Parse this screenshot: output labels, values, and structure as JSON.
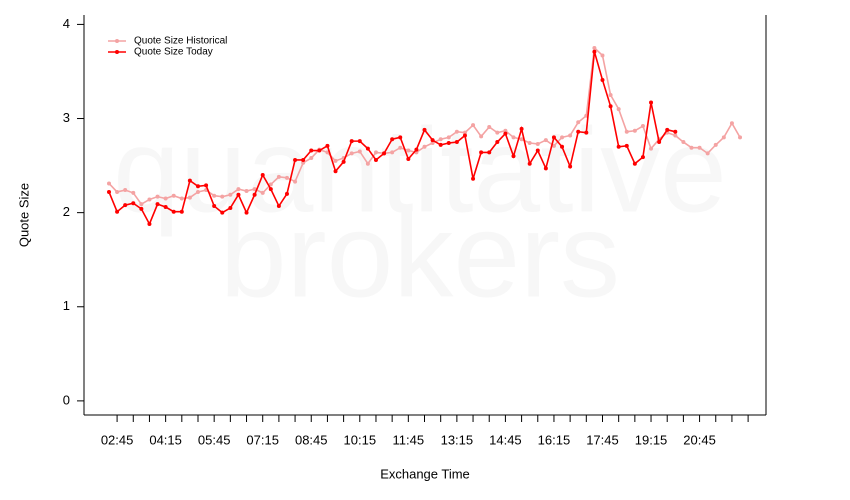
{
  "chart_data": {
    "type": "line",
    "watermark": [
      "quantitative",
      "brokers"
    ],
    "ylabel": "Quote Size",
    "xlabel": "Exchange Time",
    "x": [
      "02:30",
      "02:45",
      "03:00",
      "03:15",
      "03:30",
      "03:45",
      "04:00",
      "04:15",
      "04:30",
      "04:45",
      "05:00",
      "05:15",
      "05:30",
      "05:45",
      "06:00",
      "06:15",
      "06:30",
      "06:45",
      "07:00",
      "07:15",
      "07:30",
      "07:45",
      "08:00",
      "08:15",
      "08:30",
      "08:45",
      "09:00",
      "09:15",
      "09:30",
      "09:45",
      "10:00",
      "10:15",
      "10:30",
      "10:45",
      "11:00",
      "11:15",
      "11:30",
      "11:45",
      "12:00",
      "12:15",
      "12:30",
      "12:45",
      "13:00",
      "13:15",
      "13:30",
      "13:45",
      "14:00",
      "14:15",
      "14:30",
      "14:45",
      "15:00",
      "15:15",
      "15:30",
      "15:45",
      "16:00",
      "16:15",
      "16:30",
      "16:45",
      "17:00",
      "17:15",
      "17:30",
      "17:45",
      "18:00",
      "18:15",
      "18:30",
      "18:45",
      "19:00",
      "19:15",
      "19:30",
      "19:45",
      "20:00",
      "20:15",
      "20:30",
      "20:45",
      "21:00",
      "21:15",
      "21:30",
      "21:45",
      "22:00"
    ],
    "xticks": [
      "02:45",
      "04:15",
      "05:45",
      "07:15",
      "08:45",
      "10:15",
      "11:45",
      "13:15",
      "14:45",
      "16:15",
      "17:45",
      "19:15",
      "20:45"
    ],
    "xminorticks": [
      "03:15",
      "03:45",
      "04:45",
      "05:15",
      "06:15",
      "06:45",
      "07:45",
      "08:15",
      "09:15",
      "09:45",
      "10:45",
      "11:15",
      "12:15",
      "12:45",
      "13:45",
      "14:15",
      "15:15",
      "15:45",
      "16:45",
      "17:15",
      "18:15",
      "18:45",
      "19:45",
      "20:15",
      "21:15",
      "21:45",
      "22:15"
    ],
    "ylim": [
      -0.15,
      4.1
    ],
    "yticks": [
      0,
      1,
      2,
      3,
      4
    ],
    "legend": "top-left",
    "series": [
      {
        "name": "Quote Size Historical",
        "color": "#f4a3a3",
        "values": [
          2.31,
          2.22,
          2.24,
          2.21,
          2.09,
          2.14,
          2.17,
          2.15,
          2.18,
          2.15,
          2.16,
          2.22,
          2.24,
          2.18,
          2.17,
          2.19,
          2.25,
          2.23,
          2.25,
          2.21,
          2.3,
          2.38,
          2.37,
          2.33,
          2.53,
          2.58,
          2.67,
          2.64,
          2.55,
          2.58,
          2.63,
          2.65,
          2.52,
          2.64,
          2.63,
          2.64,
          2.69,
          2.66,
          2.64,
          2.7,
          2.74,
          2.78,
          2.8,
          2.86,
          2.85,
          2.93,
          2.81,
          2.91,
          2.85,
          2.87,
          2.8,
          2.78,
          2.74,
          2.73,
          2.77,
          2.71,
          2.8,
          2.82,
          2.96,
          3.03,
          3.75,
          3.67,
          3.25,
          3.1,
          2.86,
          2.87,
          2.92,
          2.68,
          2.78,
          2.85,
          2.82,
          2.75,
          2.69,
          2.69,
          2.63,
          2.72,
          2.8,
          2.95,
          2.8
        ]
      },
      {
        "name": "Quote Size Today",
        "color": "#ff0000",
        "values": [
          2.22,
          2.01,
          2.08,
          2.1,
          2.04,
          1.88,
          2.09,
          2.06,
          2.01,
          2.01,
          2.34,
          2.28,
          2.29,
          2.07,
          2.0,
          2.05,
          2.19,
          2.0,
          2.19,
          2.4,
          2.25,
          2.07,
          2.2,
          2.56,
          2.56,
          2.66,
          2.66,
          2.71,
          2.44,
          2.54,
          2.76,
          2.76,
          2.68,
          2.56,
          2.63,
          2.78,
          2.8,
          2.57,
          2.67,
          2.88,
          2.77,
          2.72,
          2.74,
          2.75,
          2.82,
          2.36,
          2.64,
          2.64,
          2.75,
          2.84,
          2.6,
          2.89,
          2.52,
          2.66,
          2.47,
          2.8,
          2.7,
          2.49,
          2.86,
          2.85,
          3.71,
          3.41,
          3.13,
          2.7,
          2.71,
          2.52,
          2.59,
          3.17,
          2.75,
          2.88,
          2.86,
          null,
          null,
          null,
          null,
          null,
          null,
          null,
          null
        ]
      }
    ]
  }
}
